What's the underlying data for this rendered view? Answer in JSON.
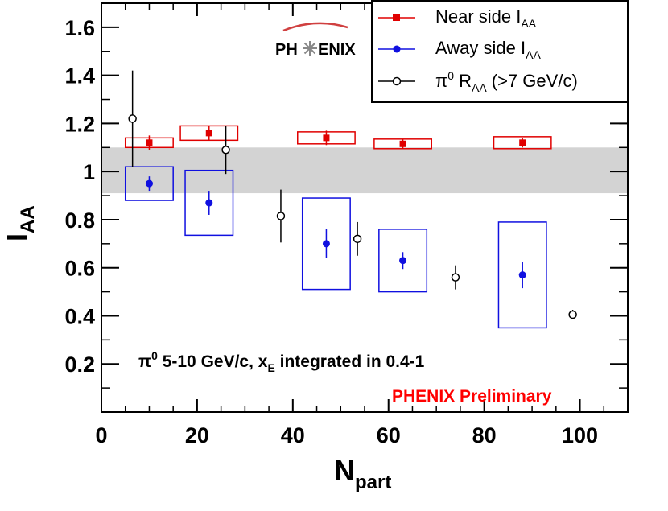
{
  "chart_data": {
    "type": "scatter",
    "title": "",
    "xlabel": {
      "main": "N",
      "sub": "part"
    },
    "ylabel": {
      "main": "I",
      "sub": "AA"
    },
    "xlim": [
      0,
      110
    ],
    "ylim": [
      0,
      1.7
    ],
    "x_ticks": [
      0,
      20,
      40,
      60,
      80,
      100
    ],
    "x_tick_labels": [
      "0",
      "20",
      "40",
      "60",
      "80",
      "100"
    ],
    "y_ticks": [
      0.2,
      0.4,
      0.6,
      0.8,
      1.0,
      1.2,
      1.4,
      1.6
    ],
    "y_tick_labels": [
      "0.2",
      "0.4",
      "0.6",
      "0.8",
      "1",
      "1.2",
      "1.4",
      "1.6"
    ],
    "reference_band": {
      "y_low": 0.91,
      "y_high": 1.1,
      "color": "#d3d3d3"
    },
    "series": [
      {
        "name": "Near side I_AA",
        "legend_main": "Near side I",
        "legend_sub": "AA",
        "color": "#e00000",
        "marker": "square",
        "points": [
          {
            "x": 10.0,
            "y": 1.12,
            "err": 0.03,
            "sys": 0.02,
            "sys_w": 5
          },
          {
            "x": 22.5,
            "y": 1.16,
            "err": 0.03,
            "sys": 0.03,
            "sys_w": 6
          },
          {
            "x": 47.0,
            "y": 1.14,
            "err": 0.03,
            "sys": 0.025,
            "sys_w": 6
          },
          {
            "x": 63.0,
            "y": 1.115,
            "err": 0.02,
            "sys": 0.02,
            "sys_w": 6
          },
          {
            "x": 88.0,
            "y": 1.12,
            "err": 0.02,
            "sys": 0.025,
            "sys_w": 6
          }
        ]
      },
      {
        "name": "Away side I_AA",
        "legend_main": "Away side I",
        "legend_sub": "AA",
        "color": "#1010e0",
        "marker": "circle",
        "points": [
          {
            "x": 10.0,
            "y": 0.95,
            "err": 0.03,
            "sys": 0.07,
            "sys_w": 5
          },
          {
            "x": 22.5,
            "y": 0.87,
            "err": 0.05,
            "sys": 0.135,
            "sys_w": 5
          },
          {
            "x": 47.0,
            "y": 0.7,
            "err": 0.06,
            "sys": 0.19,
            "sys_w": 5
          },
          {
            "x": 63.0,
            "y": 0.63,
            "err": 0.035,
            "sys": 0.13,
            "sys_w": 5
          },
          {
            "x": 88.0,
            "y": 0.57,
            "err": 0.055,
            "sys": 0.22,
            "sys_w": 5
          }
        ]
      },
      {
        "name": "pi0 R_AA (>7 GeV/c)",
        "legend_main": "π",
        "legend_sup": "0",
        "legend_mid": " R",
        "legend_sub": "AA",
        "legend_tail": " (>7 GeV/c)",
        "color": "#000000",
        "marker": "open-circle",
        "points": [
          {
            "x": 6.5,
            "y": 1.22,
            "err": 0.2
          },
          {
            "x": 26.0,
            "y": 1.09,
            "err": 0.1
          },
          {
            "x": 37.5,
            "y": 0.815,
            "err": 0.11
          },
          {
            "x": 53.5,
            "y": 0.72,
            "err": 0.07
          },
          {
            "x": 74.0,
            "y": 0.56,
            "err": 0.05
          },
          {
            "x": 98.5,
            "y": 0.405,
            "err": 0.02
          }
        ]
      }
    ],
    "annotation": {
      "pi": "π",
      "sup": "0",
      "text1": " 5-10 GeV/c, x",
      "sub": "E",
      "text2": " integrated in 0.4-1"
    },
    "preliminary_label": "PHENIX Preliminary",
    "preliminary_color": "#ff0000",
    "logo": {
      "left": "PH",
      "right": "ENIX"
    }
  }
}
